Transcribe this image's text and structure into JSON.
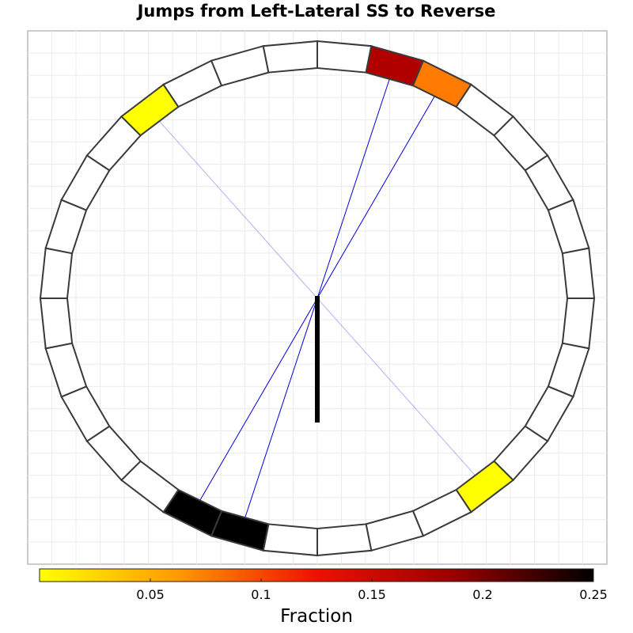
{
  "chart_data": {
    "type": "other",
    "title": "Jumps from Left-Lateral SS to Reverse",
    "segments": 32,
    "grid": true,
    "colors": {
      "segment_stroke": "#3a3a3a",
      "empty_fill": "#ffffff",
      "link_color": "#0000dd",
      "center_bar": "#000000"
    },
    "colorbar": {
      "title": "Fraction",
      "range": [
        0,
        0.25
      ],
      "ticks": [
        0.05,
        0.1,
        0.15,
        0.2,
        0.25
      ],
      "tick_labels": [
        "0.05",
        "0.1",
        "0.15",
        "0.2",
        "0.25"
      ],
      "colors": [
        "#ffff00",
        "#ff9900",
        "#ee1100",
        "#990000",
        "#000000"
      ]
    },
    "filled_segments": [
      {
        "index": 1,
        "value": 0.17,
        "color": "#b00000",
        "link_opacity": 1.0
      },
      {
        "index": 2,
        "value": 0.09,
        "color": "#ff7a00",
        "link_opacity": 1.0
      },
      {
        "index": 12,
        "value": 0.005,
        "color": "#ffff00",
        "link_opacity": 0.3
      },
      {
        "index": 17,
        "value": 0.25,
        "color": "#000000",
        "link_opacity": 1.0
      },
      {
        "index": 18,
        "value": 0.25,
        "color": "#000000",
        "link_opacity": 1.0
      },
      {
        "index": 28,
        "value": 0.005,
        "color": "#ffff00",
        "link_opacity": 0.3
      }
    ]
  }
}
